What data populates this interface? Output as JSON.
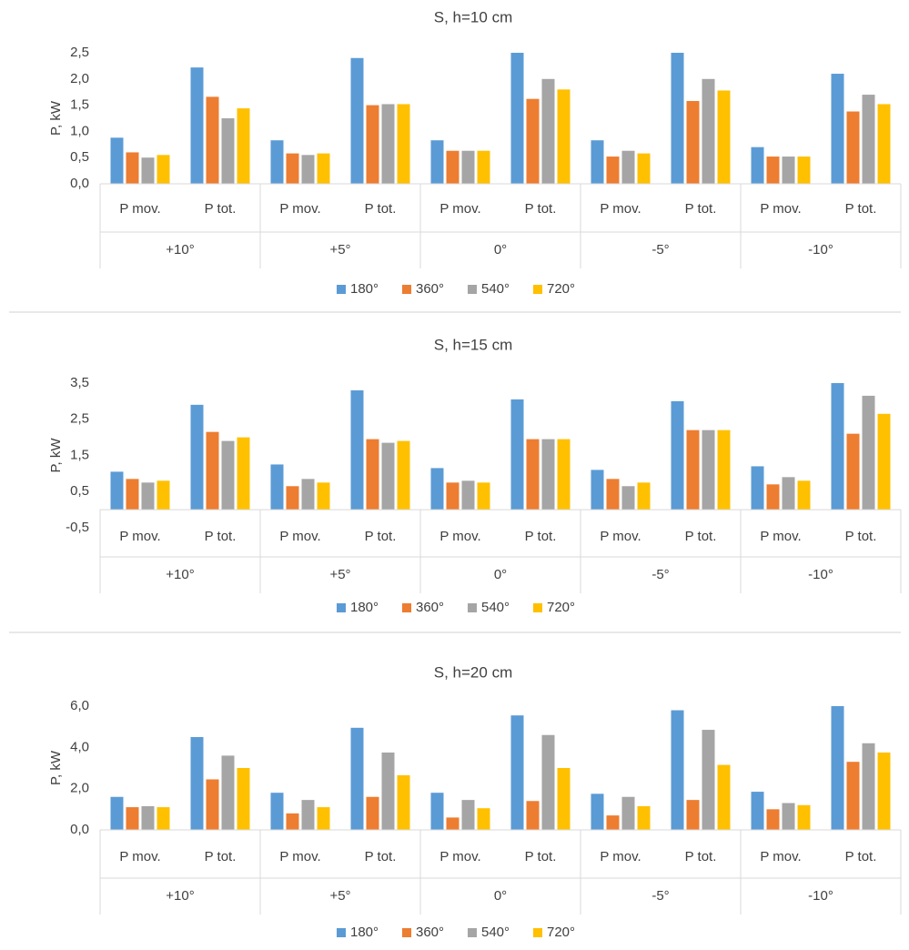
{
  "chart_data": [
    {
      "type": "bar",
      "title": "S, h=10 cm",
      "y_label": "P, kW",
      "categories": [
        "P mov.",
        "P tot.",
        "P mov.",
        "P tot.",
        "P mov.",
        "P tot.",
        "P mov.",
        "P tot.",
        "P mov.",
        "P tot."
      ],
      "groups": [
        "+10°",
        "+5°",
        "0°",
        "-5°",
        "-10°"
      ],
      "series": [
        {
          "name": "180°",
          "color": "#5b9bd5",
          "values": [
            0.88,
            2.22,
            0.83,
            2.4,
            0.83,
            2.5,
            0.83,
            2.5,
            0.7,
            2.1
          ]
        },
        {
          "name": "360°",
          "color": "#ed7d31",
          "values": [
            0.6,
            1.66,
            0.58,
            1.5,
            0.63,
            1.62,
            0.52,
            1.58,
            0.52,
            1.38
          ]
        },
        {
          "name": "540°",
          "color": "#a5a5a5",
          "values": [
            0.5,
            1.25,
            0.55,
            1.52,
            0.63,
            2.0,
            0.63,
            2.0,
            0.52,
            1.7
          ]
        },
        {
          "name": "720°",
          "color": "#ffc000",
          "values": [
            0.55,
            1.44,
            0.58,
            1.52,
            0.63,
            1.8,
            0.58,
            1.78,
            0.52,
            1.52
          ]
        }
      ],
      "ylim": [
        0,
        2.5
      ],
      "yticks": [
        {
          "value": 0,
          "label": "0,0"
        },
        {
          "value": 0.5,
          "label": "0,5"
        },
        {
          "value": 1,
          "label": "1,0"
        },
        {
          "value": 1.5,
          "label": "1,5"
        },
        {
          "value": 2,
          "label": "2,0"
        },
        {
          "value": 2.5,
          "label": "2,5"
        }
      ],
      "legend": "bottom"
    },
    {
      "type": "bar",
      "title": "S, h=15 cm",
      "y_label": "P, kW",
      "categories": [
        "P mov.",
        "P tot.",
        "P mov.",
        "P tot.",
        "P mov.",
        "P tot.",
        "P mov.",
        "P tot.",
        "P mov.",
        "P tot."
      ],
      "groups": [
        "+10°",
        "+5°",
        "0°",
        "-5°",
        "-10°"
      ],
      "series": [
        {
          "name": "180°",
          "color": "#5b9bd5",
          "values": [
            1.05,
            2.9,
            1.25,
            3.3,
            1.15,
            3.05,
            1.1,
            3.0,
            1.2,
            3.5
          ]
        },
        {
          "name": "360°",
          "color": "#ed7d31",
          "values": [
            0.85,
            2.15,
            0.65,
            1.95,
            0.75,
            1.95,
            0.85,
            2.2,
            0.7,
            2.1
          ]
        },
        {
          "name": "540°",
          "color": "#a5a5a5",
          "values": [
            0.75,
            1.9,
            0.85,
            1.85,
            0.8,
            1.95,
            0.65,
            2.2,
            0.9,
            3.15
          ]
        },
        {
          "name": "720°",
          "color": "#ffc000",
          "values": [
            0.8,
            2.0,
            0.75,
            1.9,
            0.75,
            1.95,
            0.75,
            2.2,
            0.8,
            2.65
          ]
        }
      ],
      "ylim": [
        -0.5,
        3.5
      ],
      "yticks": [
        {
          "value": -0.5,
          "label": "-0,5"
        },
        {
          "value": 0.5,
          "label": "0,5"
        },
        {
          "value": 1.5,
          "label": "1,5"
        },
        {
          "value": 2.5,
          "label": "2,5"
        },
        {
          "value": 3.5,
          "label": "3,5"
        }
      ],
      "legend": "bottom"
    },
    {
      "type": "bar",
      "title": "S, h=20 cm",
      "y_label": "P, kW",
      "categories": [
        "P mov.",
        "P tot.",
        "P mov.",
        "P tot.",
        "P mov.",
        "P tot.",
        "P mov.",
        "P tot.",
        "P mov.",
        "P tot."
      ],
      "groups": [
        "+10°",
        "+5°",
        "0°",
        "-5°",
        "-10°"
      ],
      "series": [
        {
          "name": "180°",
          "color": "#5b9bd5",
          "values": [
            1.6,
            4.5,
            1.8,
            4.95,
            1.8,
            5.55,
            1.75,
            5.8,
            1.85,
            6.0
          ]
        },
        {
          "name": "360°",
          "color": "#ed7d31",
          "values": [
            1.1,
            2.45,
            0.8,
            1.6,
            0.6,
            1.4,
            0.7,
            1.45,
            1.0,
            3.3
          ]
        },
        {
          "name": "540°",
          "color": "#a5a5a5",
          "values": [
            1.15,
            3.6,
            1.45,
            3.75,
            1.45,
            4.6,
            1.6,
            4.85,
            1.3,
            4.2
          ]
        },
        {
          "name": "720°",
          "color": "#ffc000",
          "values": [
            1.1,
            3.0,
            1.1,
            2.65,
            1.05,
            3.0,
            1.15,
            3.15,
            1.2,
            3.75
          ]
        }
      ],
      "ylim": [
        0,
        6
      ],
      "yticks": [
        {
          "value": 0,
          "label": "0,0"
        },
        {
          "value": 2,
          "label": "2,0"
        },
        {
          "value": 4,
          "label": "4,0"
        },
        {
          "value": 6,
          "label": "6,0"
        }
      ],
      "legend": "bottom"
    }
  ]
}
